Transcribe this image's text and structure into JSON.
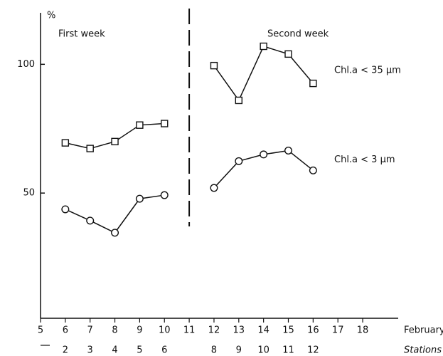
{
  "chart_data": {
    "type": "line",
    "ylabel": "%",
    "xlabel": "February",
    "x2label": "Stations",
    "annotations": [
      "First week",
      "Second week"
    ],
    "categories": [
      "5",
      "6",
      "7",
      "8",
      "9",
      "10",
      "11",
      "12",
      "13",
      "14",
      "15",
      "16",
      "17",
      "18"
    ],
    "stations": [
      null,
      "2",
      "3",
      "4",
      "5",
      "6",
      null,
      "8",
      "9",
      "10",
      "11",
      "12",
      null,
      null
    ],
    "divider": "11",
    "series": [
      {
        "name": "Chl.a < 35 µm",
        "color": "#111111",
        "marker": "square",
        "values": [
          null,
          69.5,
          67.3,
          70,
          76.4,
          77,
          null,
          99.5,
          86,
          107,
          104,
          92.6,
          null,
          null
        ]
      },
      {
        "name": "Chl.a < 3 µm",
        "color": "#111111",
        "marker": "circle",
        "values": [
          null,
          43.7,
          39.3,
          34.6,
          47.8,
          49.2,
          null,
          52,
          62.4,
          65,
          66.5,
          58.8,
          null,
          null
        ]
      }
    ],
    "ylim": [
      0,
      120
    ],
    "yticks": [
      50,
      100
    ],
    "grid": false
  }
}
